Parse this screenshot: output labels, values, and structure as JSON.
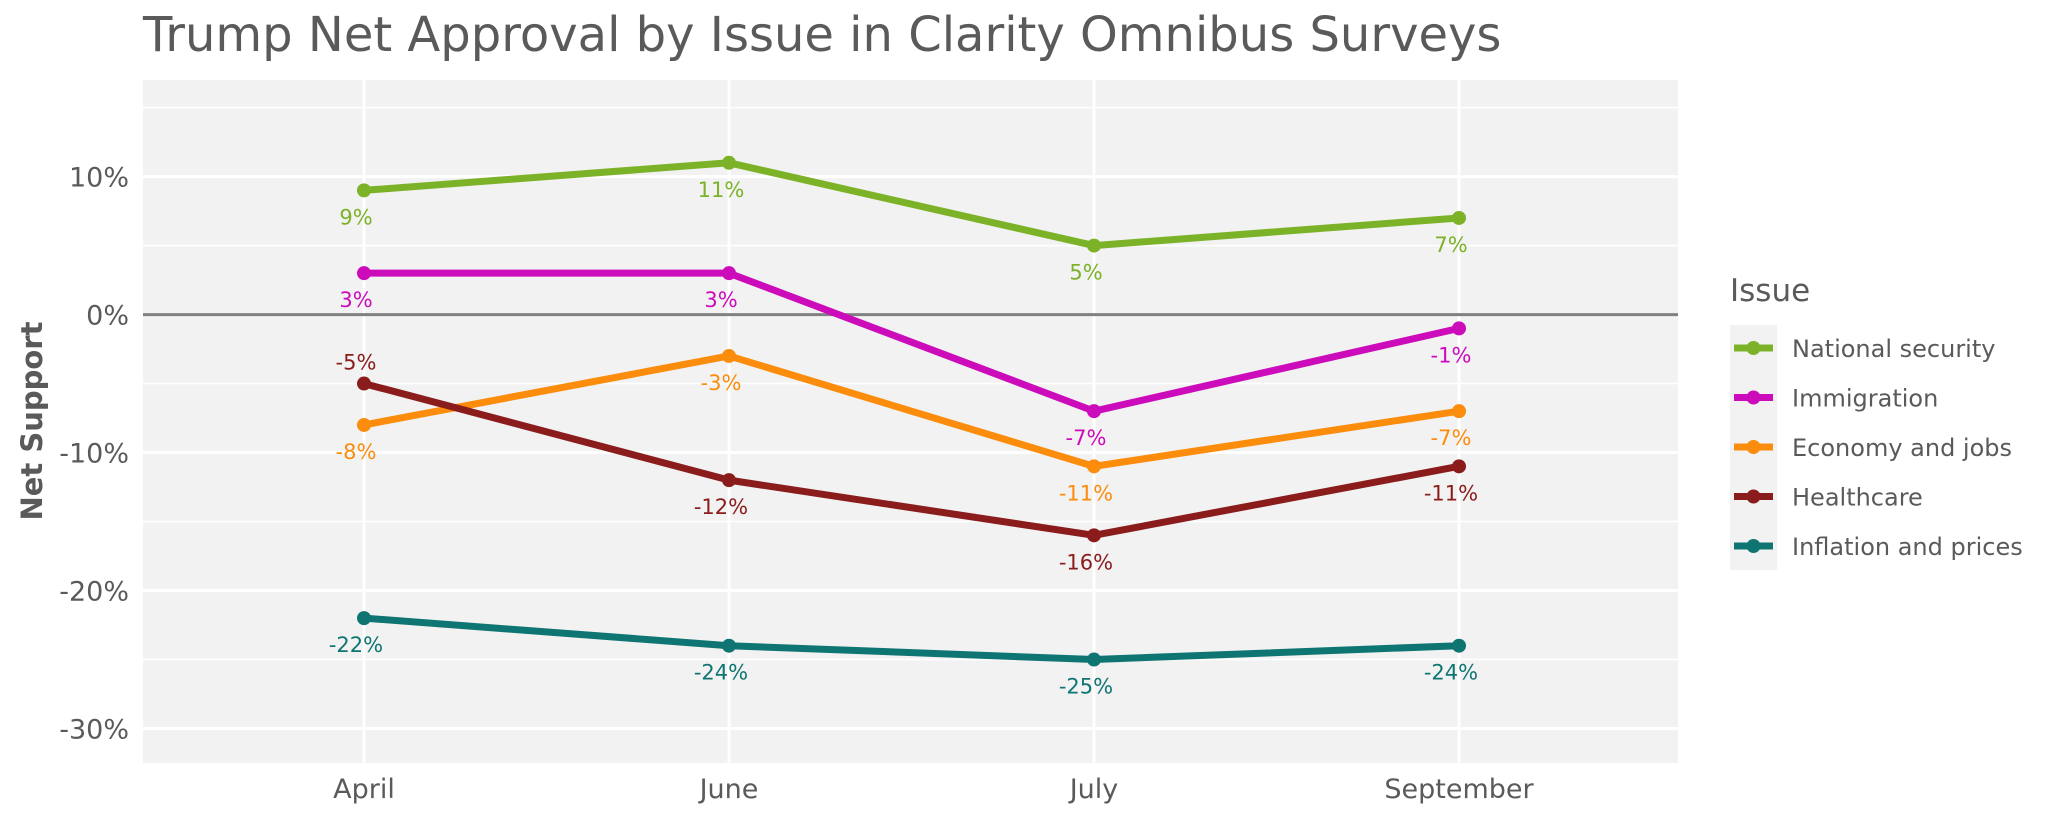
{
  "chart_data": {
    "type": "line",
    "title": "Trump Net Approval by Issue in Clarity Omnibus Surveys",
    "xlabel": "",
    "ylabel": "Net Support",
    "categories": [
      "April",
      "June",
      "July",
      "September"
    ],
    "ylim": [
      -32.5,
      17
    ],
    "yticks": [
      10,
      0,
      -10,
      -20,
      -30
    ],
    "ytick_labels": [
      "10%",
      "0%",
      "-10%",
      "-20%",
      "-30%"
    ],
    "legend_title": "Issue",
    "legend_position": "right",
    "series": [
      {
        "name": "National security",
        "color": "#7cb227",
        "values": [
          9,
          11,
          5,
          7
        ],
        "labels": [
          "9%",
          "11%",
          "5%",
          "7%"
        ]
      },
      {
        "name": "Immigration",
        "color": "#cc0bbb",
        "values": [
          3,
          3,
          -7,
          -1
        ],
        "labels": [
          "3%",
          "3%",
          "-7%",
          "-1%"
        ]
      },
      {
        "name": "Economy and jobs",
        "color": "#fb8c0c",
        "values": [
          -8,
          -3,
          -11,
          -7
        ],
        "labels": [
          "-8%",
          "-3%",
          "-11%",
          "-7%"
        ]
      },
      {
        "name": "Healthcare",
        "color": "#8a1c1c",
        "values": [
          -5,
          -12,
          -16,
          -11
        ],
        "labels": [
          "-5%",
          "-12%",
          "-16%",
          "-11%"
        ]
      },
      {
        "name": "Inflation and prices",
        "color": "#0f7573",
        "values": [
          -22,
          -24,
          -25,
          -24
        ],
        "labels": [
          "-22%",
          "-24%",
          "-25%",
          "-24%"
        ]
      }
    ]
  }
}
